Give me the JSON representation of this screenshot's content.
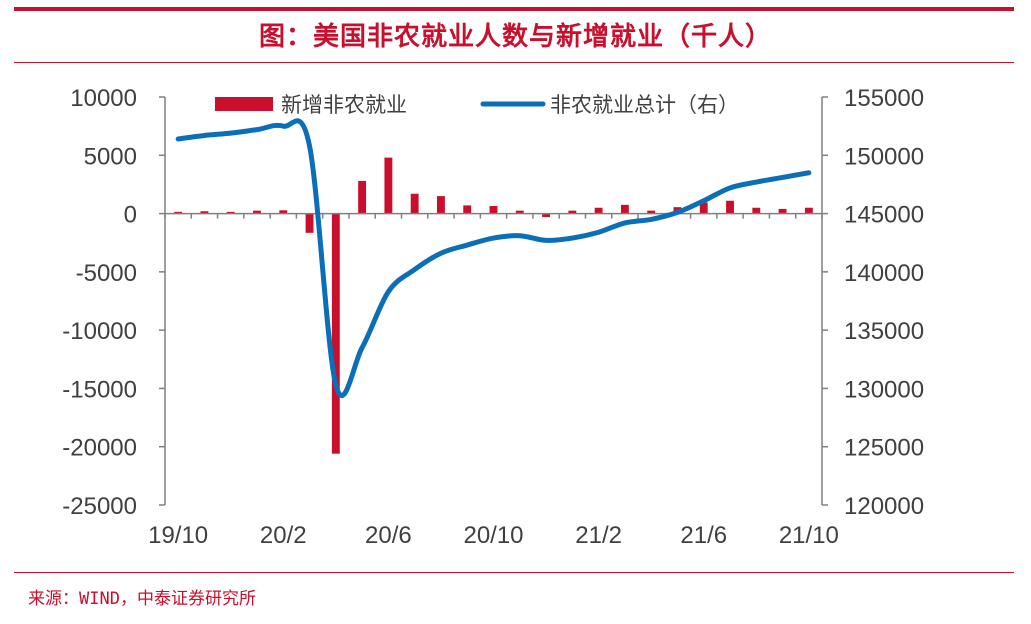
{
  "title": "图：美国非农就业人数与新增就业（千人）",
  "source": "来源：WIND，中泰证券研究所",
  "colors": {
    "accent": "#c8102e",
    "bar": "#c8102e",
    "line": "#0b6fb8",
    "axis": "#808080",
    "text": "#404040"
  },
  "chart_data": {
    "type": "bar+line",
    "legend": {
      "placement": "top",
      "entries": [
        "新增非农就业",
        "非农就业总计（右）"
      ]
    },
    "x_tick_labels": [
      "19/10",
      "20/2",
      "20/6",
      "20/10",
      "21/2",
      "21/6",
      "21/10"
    ],
    "y_left": {
      "ticks": [
        "10000",
        "5000",
        "0",
        "-5000",
        "-10000",
        "-15000",
        "-20000",
        "-25000"
      ],
      "range": [
        -25000,
        10000
      ]
    },
    "y_right": {
      "ticks": [
        "155000",
        "150000",
        "145000",
        "140000",
        "135000",
        "130000",
        "125000",
        "120000"
      ],
      "range": [
        120000,
        155000
      ]
    },
    "categories": [
      "19/10",
      "19/11",
      "19/12",
      "20/1",
      "20/2",
      "20/3",
      "20/4",
      "20/5",
      "20/6",
      "20/7",
      "20/8",
      "20/9",
      "20/10",
      "20/11",
      "20/12",
      "21/1",
      "21/2",
      "21/3",
      "21/4",
      "21/5",
      "21/6",
      "21/7",
      "21/8",
      "21/9",
      "21/10"
    ],
    "series": [
      {
        "name": "新增非农就业",
        "type": "bar",
        "axis": "left",
        "values": [
          150,
          200,
          150,
          250,
          280,
          -1650,
          -20600,
          2800,
          4800,
          1700,
          1500,
          700,
          650,
          250,
          -300,
          250,
          500,
          750,
          250,
          550,
          950,
          1100,
          500,
          400,
          500
        ]
      },
      {
        "name": "非农就业总计（右）",
        "type": "line",
        "axis": "right",
        "values": [
          151400,
          151700,
          151900,
          152200,
          152500,
          150800,
          130300,
          133500,
          138300,
          140200,
          141600,
          142300,
          142900,
          143100,
          142700,
          142900,
          143400,
          144200,
          144500,
          145100,
          146100,
          147200,
          147700,
          148100,
          148500
        ]
      }
    ]
  }
}
